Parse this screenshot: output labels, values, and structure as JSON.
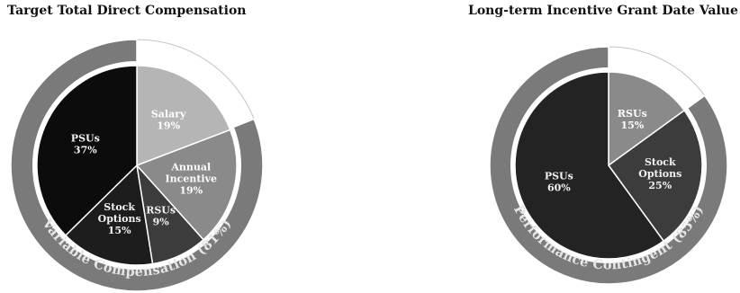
{
  "chart_data": [
    {
      "type": "pie",
      "title": "Target Total Direct Compensation",
      "categories": [
        "Salary",
        "Annual Incentive",
        "RSUs",
        "Stock Options",
        "PSUs"
      ],
      "values": [
        19,
        19,
        9,
        15,
        37
      ],
      "series": [
        {
          "values": [
            19,
            19,
            9,
            15,
            37
          ]
        }
      ],
      "slice_labels": [
        {
          "name_lines": [
            "Salary"
          ],
          "pct": "19%"
        },
        {
          "name_lines": [
            "Annual",
            "Incentive"
          ],
          "pct": "19%"
        },
        {
          "name_lines": [
            "RSUs"
          ],
          "pct": "9%"
        },
        {
          "name_lines": [
            "Stock",
            "Options"
          ],
          "pct": "15%"
        },
        {
          "name_lines": [
            "PSUs"
          ],
          "pct": "37%"
        }
      ],
      "outer_ring": {
        "label": "Variable Compensation (81%)",
        "value": 81
      },
      "colors": [
        "#b5b5b5",
        "#8a8a8a",
        "#3c3c3c",
        "#1d1d1d",
        "#0c0c0c"
      ],
      "ring_color": "#7a7a7a"
    },
    {
      "type": "pie",
      "title": "Long-term Incentive Grant Date Value",
      "categories": [
        "RSUs",
        "Stock Options",
        "PSUs"
      ],
      "values": [
        15,
        25,
        60
      ],
      "series": [
        {
          "values": [
            15,
            25,
            60
          ]
        }
      ],
      "slice_labels": [
        {
          "name_lines": [
            "RSUs"
          ],
          "pct": "15%"
        },
        {
          "name_lines": [
            "Stock",
            "Options"
          ],
          "pct": "25%"
        },
        {
          "name_lines": [
            "PSUs"
          ],
          "pct": "60%"
        }
      ],
      "outer_ring": {
        "label": "Performance Contingent (85%)",
        "value": 85
      },
      "colors": [
        "#8a8a8a",
        "#3c3c3c",
        "#232323"
      ],
      "ring_color": "#7a7a7a"
    }
  ]
}
